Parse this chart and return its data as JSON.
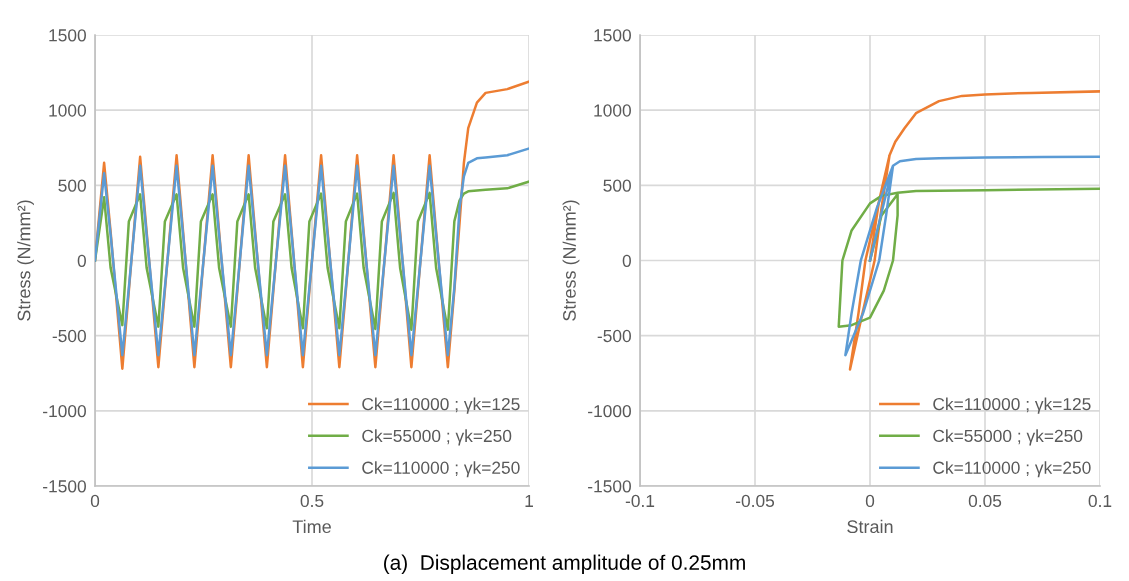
{
  "chart_data": [
    {
      "type": "line",
      "xlabel": "Time",
      "ylabel": "Stress (N/mm²)",
      "xlim": [
        0,
        1
      ],
      "xticks": [
        0,
        0.5,
        1
      ],
      "ylim": [
        -1500,
        1500
      ],
      "yticks": [
        -1500,
        -1000,
        -500,
        0,
        500,
        1000,
        1500
      ],
      "grid": true,
      "legend": "lower right",
      "marker": "none",
      "line_style": "solid",
      "annotations": [
        "(a)  Displacement amplitude of 0.25mm"
      ],
      "x": [
        0,
        0.021,
        0.036,
        0.063,
        0.078,
        0.104,
        0.119,
        0.146,
        0.161,
        0.188,
        0.203,
        0.229,
        0.244,
        0.271,
        0.286,
        0.313,
        0.328,
        0.354,
        0.369,
        0.396,
        0.411,
        0.438,
        0.453,
        0.479,
        0.494,
        0.521,
        0.536,
        0.563,
        0.578,
        0.604,
        0.619,
        0.646,
        0.661,
        0.688,
        0.703,
        0.729,
        0.744,
        0.771,
        0.786,
        0.813,
        0.828,
        0.84,
        0.85,
        0.86,
        0.88,
        0.9,
        0.95,
        1.0
      ],
      "series": [
        {
          "name": "Ck=110000 ; γk=125",
          "color": "#ed7d31",
          "values": [
            0,
            650,
            190,
            -720,
            -200,
            690,
            190,
            -710,
            -200,
            700,
            190,
            -710,
            -200,
            700,
            190,
            -710,
            -200,
            700,
            190,
            -710,
            -200,
            700,
            190,
            -710,
            -200,
            700,
            190,
            -710,
            -200,
            700,
            190,
            -710,
            -200,
            700,
            190,
            -710,
            -200,
            700,
            190,
            -710,
            -200,
            250,
            650,
            880,
            1050,
            1115,
            1140,
            1190
          ]
        },
        {
          "name": "Ck=55000 ; γk=250",
          "color": "#70ad47",
          "values": [
            0,
            420,
            -50,
            -430,
            260,
            440,
            -50,
            -440,
            260,
            440,
            -50,
            -440,
            260,
            440,
            -50,
            -440,
            260,
            440,
            -50,
            -450,
            260,
            440,
            -50,
            -450,
            260,
            445,
            -50,
            -450,
            260,
            445,
            -50,
            -455,
            260,
            450,
            -50,
            -460,
            260,
            450,
            -50,
            -460,
            260,
            400,
            445,
            460,
            465,
            470,
            480,
            525
          ]
        },
        {
          "name": "Ck=110000 ; γk=250",
          "color": "#5b9bd5",
          "values": [
            0,
            580,
            170,
            -630,
            -180,
            630,
            170,
            -630,
            -180,
            630,
            170,
            -630,
            -180,
            630,
            170,
            -630,
            -180,
            630,
            170,
            -630,
            -180,
            630,
            170,
            -630,
            -180,
            630,
            170,
            -630,
            -180,
            630,
            170,
            -630,
            -180,
            630,
            170,
            -630,
            -180,
            630,
            170,
            -630,
            -180,
            350,
            560,
            650,
            680,
            685,
            700,
            745
          ]
        }
      ]
    },
    {
      "type": "line",
      "xlabel": "Strain",
      "ylabel": "Stress (N/mm²)",
      "xlim": [
        -0.1,
        0.1
      ],
      "xticks": [
        -0.1,
        -0.05,
        0,
        0.05,
        0.1
      ],
      "ylim": [
        -1500,
        1500
      ],
      "yticks": [
        -1500,
        -1000,
        -500,
        0,
        500,
        1000,
        1500
      ],
      "grid": true,
      "legend": "lower right",
      "marker": "none",
      "line_style": "solid",
      "series": [
        {
          "name": "Ck=110000 ; γk=125",
          "color": "#ed7d31",
          "x": [
            0,
            0.004,
            0.0085,
            0.005,
            0.002,
            -0.004,
            -0.0087,
            -0.005,
            -0.002,
            0.004,
            0.0085,
            0.011,
            0.015,
            0.02,
            0.03,
            0.04,
            0.05,
            0.07,
            0.1
          ],
          "values": [
            0,
            400,
            700,
            350,
            0,
            -400,
            -725,
            -350,
            0,
            400,
            700,
            790,
            880,
            980,
            1060,
            1095,
            1105,
            1115,
            1125
          ]
        },
        {
          "name": "Ck=55000 ; γk=250",
          "color": "#70ad47",
          "x": [
            0,
            0.005,
            0.012,
            0.012,
            0.01,
            0.006,
            0,
            -0.008,
            -0.0136,
            -0.012,
            -0.008,
            0,
            0.005,
            0.012,
            0.02,
            0.05,
            0.1
          ],
          "values": [
            0,
            300,
            440,
            300,
            0,
            -200,
            -380,
            -430,
            -440,
            0,
            200,
            380,
            430,
            450,
            462,
            468,
            478
          ]
        },
        {
          "name": "Ck=110000 ; γk=250",
          "color": "#5b9bd5",
          "x": [
            0,
            0.006,
            0.01,
            0.007,
            0.004,
            -0.003,
            -0.0107,
            -0.008,
            -0.004,
            0.003,
            0.01,
            0.013,
            0.02,
            0.03,
            0.05,
            0.075,
            0.1
          ],
          "values": [
            0,
            380,
            630,
            300,
            0,
            -350,
            -630,
            -350,
            0,
            350,
            630,
            660,
            675,
            680,
            685,
            688,
            690
          ]
        }
      ]
    }
  ]
}
